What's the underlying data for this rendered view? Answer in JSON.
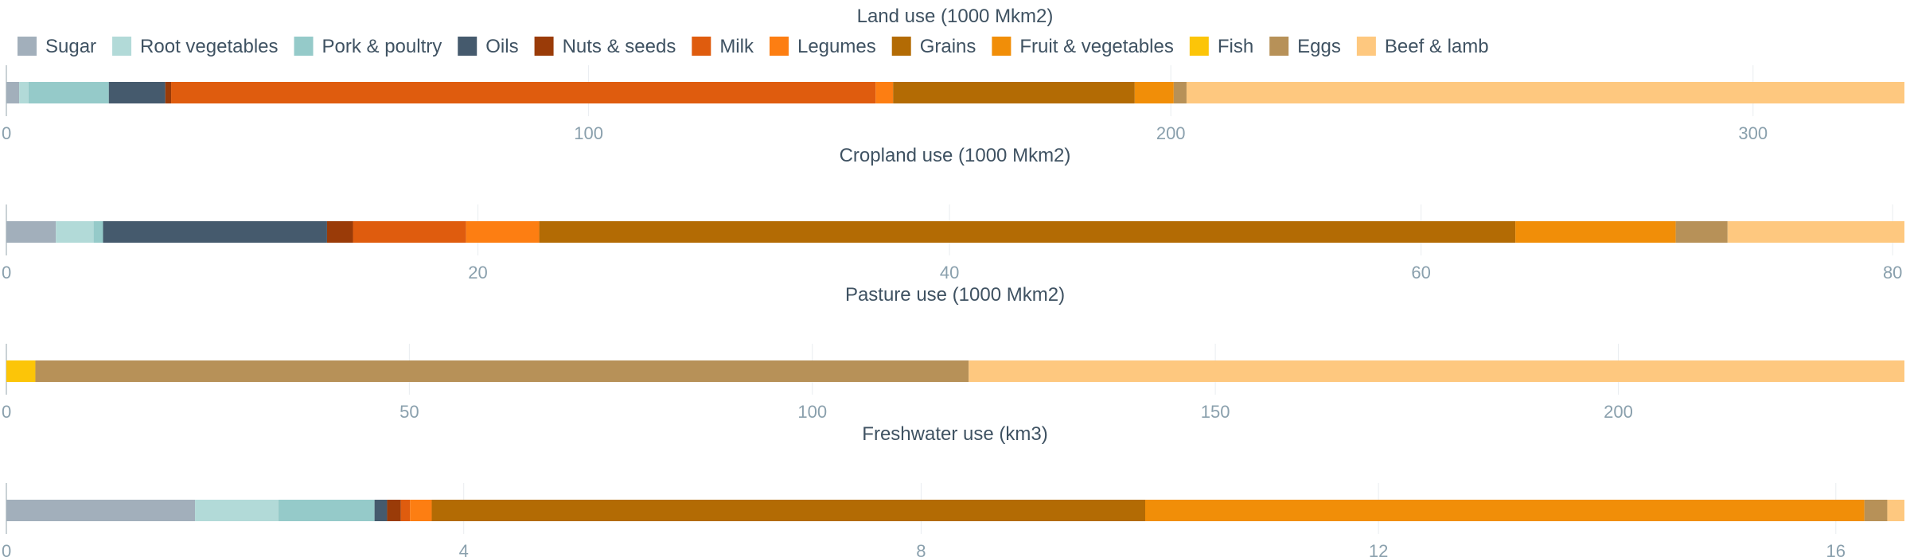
{
  "categories": [
    "Sugar",
    "Root vegetables",
    "Pork & poultry",
    "Oils",
    "Nuts & seeds",
    "Milk",
    "Legumes",
    "Grains",
    "Fruit & vegetables",
    "Fish",
    "Eggs",
    "Beef & lamb"
  ],
  "colors": [
    "#a2afbb",
    "#b2dad8",
    "#95cac9",
    "#455a6d",
    "#9a3b08",
    "#df5c0e",
    "#fd7e12",
    "#b36b04",
    "#f18e08",
    "#fcc508",
    "#b79158",
    "#fec87f"
  ],
  "chart_data": [
    {
      "type": "bar",
      "stacked": true,
      "orientation": "horizontal",
      "title": "Land use (1000 Mkm2)",
      "xlim": [
        0,
        326
      ],
      "ticks": [
        0,
        100,
        200,
        300
      ],
      "series": [
        {
          "name": "Sugar",
          "value": 2.2
        },
        {
          "name": "Root vegetables",
          "value": 1.6
        },
        {
          "name": "Pork & poultry",
          "value": 13.8
        },
        {
          "name": "Oils",
          "value": 9.7
        },
        {
          "name": "Nuts & seeds",
          "value": 1.0
        },
        {
          "name": "Milk",
          "value": 121.0
        },
        {
          "name": "Legumes",
          "value": 3.0
        },
        {
          "name": "Grains",
          "value": 41.5
        },
        {
          "name": "Fruit & vegetables",
          "value": 6.7
        },
        {
          "name": "Fish",
          "value": 0
        },
        {
          "name": "Eggs",
          "value": 2.2
        },
        {
          "name": "Beef & lamb",
          "value": 123.3
        }
      ]
    },
    {
      "type": "bar",
      "stacked": true,
      "orientation": "horizontal",
      "title": "Cropland use (1000 Mkm2)",
      "xlim": [
        0,
        80.5
      ],
      "ticks": [
        0,
        20,
        40,
        60,
        80
      ],
      "series": [
        {
          "name": "Sugar",
          "value": 2.1
        },
        {
          "name": "Root vegetables",
          "value": 1.6
        },
        {
          "name": "Pork & poultry",
          "value": 0.4
        },
        {
          "name": "Oils",
          "value": 9.5
        },
        {
          "name": "Nuts & seeds",
          "value": 1.1
        },
        {
          "name": "Milk",
          "value": 4.8
        },
        {
          "name": "Legumes",
          "value": 3.1
        },
        {
          "name": "Grains",
          "value": 41.4
        },
        {
          "name": "Fruit & vegetables",
          "value": 6.8
        },
        {
          "name": "Fish",
          "value": 0
        },
        {
          "name": "Eggs",
          "value": 2.2
        },
        {
          "name": "Beef & lamb",
          "value": 7.5
        }
      ]
    },
    {
      "type": "bar",
      "stacked": true,
      "orientation": "horizontal",
      "title": "Pasture use (1000 Mkm2)",
      "xlim": [
        0,
        235.5
      ],
      "ticks": [
        0,
        50,
        100,
        150,
        200
      ],
      "series": [
        {
          "name": "Sugar",
          "value": 0
        },
        {
          "name": "Root vegetables",
          "value": 0
        },
        {
          "name": "Pork & poultry",
          "value": 0
        },
        {
          "name": "Oils",
          "value": 0
        },
        {
          "name": "Nuts & seeds",
          "value": 0
        },
        {
          "name": "Milk",
          "value": 0
        },
        {
          "name": "Legumes",
          "value": 0
        },
        {
          "name": "Grains",
          "value": 0
        },
        {
          "name": "Fruit & vegetables",
          "value": 0
        },
        {
          "name": "Fish",
          "value": 3.6
        },
        {
          "name": "Eggs",
          "value": 115.8
        },
        {
          "name": "Beef & lamb",
          "value": 116.1
        }
      ]
    },
    {
      "type": "bar",
      "stacked": true,
      "orientation": "horizontal",
      "title": "Freshwater use (km3)",
      "xlim": [
        0,
        16.6
      ],
      "ticks": [
        0,
        4,
        8,
        12,
        16
      ],
      "series": [
        {
          "name": "Sugar",
          "value": 1.65
        },
        {
          "name": "Root vegetables",
          "value": 0.73
        },
        {
          "name": "Pork & poultry",
          "value": 0.84
        },
        {
          "name": "Oils",
          "value": 0.11
        },
        {
          "name": "Nuts & seeds",
          "value": 0.12
        },
        {
          "name": "Milk",
          "value": 0.08
        },
        {
          "name": "Legumes",
          "value": 0.19
        },
        {
          "name": "Grains",
          "value": 6.24
        },
        {
          "name": "Fruit & vegetables",
          "value": 6.29
        },
        {
          "name": "Fish",
          "value": 0
        },
        {
          "name": "Eggs",
          "value": 0.2
        },
        {
          "name": "Beef & lamb",
          "value": 0.15
        }
      ]
    }
  ]
}
